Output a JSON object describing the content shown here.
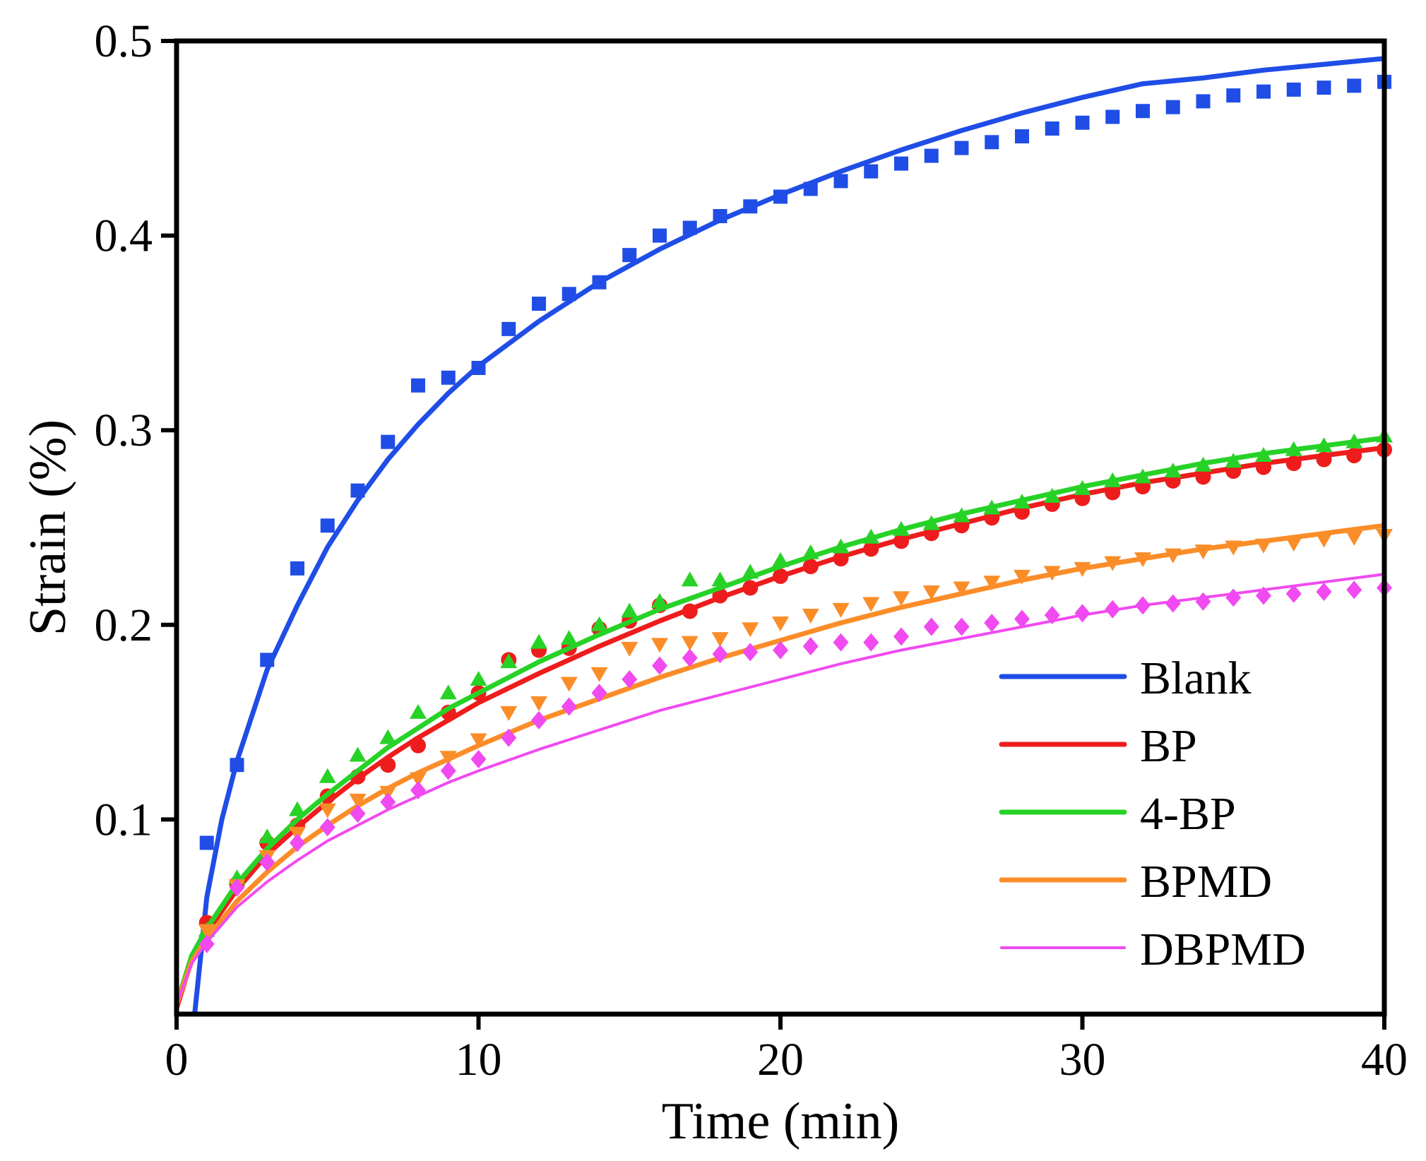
{
  "chart_data": {
    "type": "scatter",
    "title": "",
    "xlabel": "Time (min)",
    "ylabel": "Strain (%)",
    "xlim": [
      0,
      40
    ],
    "ylim": [
      0,
      0.5
    ],
    "xticks": [
      0,
      10,
      20,
      30,
      40
    ],
    "xtick_labels": [
      "0",
      "10",
      "20",
      "30",
      "40"
    ],
    "yticks": [
      0.1,
      0.2,
      0.3,
      0.4,
      0.5
    ],
    "ytick_labels": [
      "0.1",
      "0.2",
      "0.3",
      "0.4",
      "0.5"
    ],
    "legend_position": "bottom-right",
    "grid": false,
    "series": [
      {
        "name": "Blank",
        "color": "#1f4de6",
        "marker": "square",
        "x": [
          1,
          2,
          3,
          4,
          5,
          6,
          7,
          8,
          9,
          10,
          11,
          12,
          13,
          14,
          15,
          16,
          17,
          18,
          19,
          20,
          21,
          22,
          23,
          24,
          25,
          26,
          27,
          28,
          29,
          30,
          31,
          32,
          33,
          34,
          35,
          36,
          37,
          38,
          39,
          40
        ],
        "values": [
          0.088,
          0.128,
          0.182,
          0.229,
          0.251,
          0.269,
          0.294,
          0.323,
          0.327,
          0.332,
          0.352,
          0.365,
          0.37,
          0.376,
          0.39,
          0.4,
          0.404,
          0.41,
          0.415,
          0.42,
          0.424,
          0.428,
          0.433,
          0.437,
          0.441,
          0.445,
          0.448,
          0.451,
          0.455,
          0.458,
          0.461,
          0.464,
          0.466,
          0.469,
          0.472,
          0.474,
          0.475,
          0.476,
          0.477,
          0.479
        ],
        "fit_x": [
          0.6,
          1,
          1.5,
          2,
          3,
          4,
          5,
          6,
          7,
          8,
          9,
          10,
          12,
          14,
          16,
          18,
          20,
          22,
          24,
          26,
          28,
          30,
          32,
          34,
          36,
          38,
          40
        ],
        "fit_values": [
          0.0,
          0.06,
          0.1,
          0.13,
          0.177,
          0.21,
          0.24,
          0.264,
          0.285,
          0.303,
          0.319,
          0.333,
          0.356,
          0.376,
          0.393,
          0.408,
          0.421,
          0.433,
          0.444,
          0.454,
          0.463,
          0.471,
          0.478,
          0.481,
          0.485,
          0.488,
          0.491
        ],
        "line_width": 7
      },
      {
        "name": "BP",
        "color": "#ee1c1c",
        "marker": "circle",
        "x": [
          1,
          2,
          3,
          4,
          5,
          6,
          7,
          8,
          9,
          10,
          11,
          12,
          13,
          14,
          15,
          16,
          17,
          18,
          19,
          20,
          21,
          22,
          23,
          24,
          25,
          26,
          27,
          28,
          29,
          30,
          31,
          32,
          33,
          34,
          35,
          36,
          37,
          38,
          39,
          40
        ],
        "values": [
          0.047,
          0.067,
          0.088,
          0.097,
          0.112,
          0.122,
          0.128,
          0.138,
          0.155,
          0.165,
          0.182,
          0.187,
          0.188,
          0.198,
          0.202,
          0.21,
          0.207,
          0.215,
          0.219,
          0.225,
          0.23,
          0.234,
          0.239,
          0.243,
          0.247,
          0.251,
          0.255,
          0.258,
          0.262,
          0.265,
          0.268,
          0.271,
          0.274,
          0.276,
          0.279,
          0.281,
          0.283,
          0.285,
          0.287,
          0.29
        ],
        "fit_x": [
          0,
          0.5,
          1,
          2,
          3,
          4,
          5,
          6,
          7,
          8,
          9,
          10,
          12,
          14,
          16,
          18,
          20,
          22,
          24,
          26,
          28,
          30,
          32,
          34,
          36,
          38,
          40
        ],
        "fit_values": [
          0.003,
          0.028,
          0.042,
          0.064,
          0.082,
          0.096,
          0.109,
          0.121,
          0.132,
          0.142,
          0.151,
          0.16,
          0.175,
          0.189,
          0.202,
          0.214,
          0.225,
          0.235,
          0.244,
          0.252,
          0.26,
          0.267,
          0.273,
          0.278,
          0.283,
          0.287,
          0.291
        ],
        "line_width": 7
      },
      {
        "name": "4-BP",
        "color": "#27d227",
        "marker": "triangle-up",
        "x": [
          1,
          2,
          3,
          4,
          5,
          6,
          7,
          8,
          9,
          10,
          11,
          12,
          13,
          14,
          15,
          16,
          17,
          18,
          19,
          20,
          21,
          22,
          23,
          24,
          25,
          26,
          27,
          28,
          29,
          30,
          31,
          32,
          33,
          34,
          35,
          36,
          37,
          38,
          39,
          40
        ],
        "values": [
          0.043,
          0.07,
          0.091,
          0.105,
          0.122,
          0.133,
          0.142,
          0.155,
          0.165,
          0.172,
          0.181,
          0.191,
          0.193,
          0.2,
          0.207,
          0.212,
          0.223,
          0.223,
          0.227,
          0.233,
          0.237,
          0.24,
          0.245,
          0.249,
          0.252,
          0.256,
          0.26,
          0.263,
          0.266,
          0.27,
          0.274,
          0.276,
          0.279,
          0.282,
          0.284,
          0.287,
          0.29,
          0.292,
          0.294,
          0.297
        ],
        "fit_x": [
          0,
          0.5,
          1,
          2,
          3,
          4,
          5,
          6,
          7,
          8,
          9,
          10,
          12,
          14,
          16,
          18,
          20,
          22,
          24,
          26,
          28,
          30,
          32,
          34,
          36,
          38,
          40
        ],
        "fit_values": [
          0.005,
          0.03,
          0.044,
          0.067,
          0.085,
          0.1,
          0.113,
          0.125,
          0.137,
          0.147,
          0.157,
          0.165,
          0.181,
          0.195,
          0.208,
          0.219,
          0.23,
          0.24,
          0.249,
          0.257,
          0.264,
          0.271,
          0.277,
          0.283,
          0.288,
          0.292,
          0.296
        ],
        "line_width": 7
      },
      {
        "name": "BPMD",
        "color": "#fb8d29",
        "marker": "triangle-down",
        "x": [
          1,
          2,
          3,
          4,
          5,
          6,
          7,
          8,
          9,
          10,
          11,
          12,
          13,
          14,
          15,
          16,
          17,
          18,
          19,
          20,
          21,
          22,
          23,
          24,
          25,
          26,
          27,
          28,
          29,
          30,
          31,
          32,
          33,
          34,
          35,
          36,
          37,
          38,
          39,
          40
        ],
        "values": [
          0.043,
          0.066,
          0.081,
          0.093,
          0.105,
          0.11,
          0.114,
          0.121,
          0.132,
          0.141,
          0.155,
          0.16,
          0.17,
          0.175,
          0.188,
          0.19,
          0.191,
          0.193,
          0.198,
          0.201,
          0.205,
          0.208,
          0.211,
          0.214,
          0.217,
          0.219,
          0.222,
          0.225,
          0.227,
          0.229,
          0.232,
          0.234,
          0.236,
          0.238,
          0.24,
          0.241,
          0.242,
          0.244,
          0.245,
          0.246
        ],
        "fit_x": [
          0,
          0.5,
          1,
          2,
          3,
          4,
          5,
          6,
          7,
          8,
          9,
          10,
          12,
          14,
          16,
          18,
          20,
          22,
          24,
          26,
          28,
          30,
          32,
          34,
          36,
          38,
          40
        ],
        "fit_values": [
          0.005,
          0.027,
          0.039,
          0.058,
          0.073,
          0.086,
          0.097,
          0.107,
          0.116,
          0.124,
          0.131,
          0.138,
          0.151,
          0.162,
          0.173,
          0.183,
          0.192,
          0.201,
          0.209,
          0.216,
          0.223,
          0.229,
          0.234,
          0.239,
          0.243,
          0.247,
          0.251
        ],
        "line_width": 7
      },
      {
        "name": "DBPMD",
        "color": "#f04af0",
        "marker": "diamond",
        "x": [
          1,
          2,
          3,
          4,
          5,
          6,
          7,
          8,
          9,
          10,
          11,
          12,
          13,
          14,
          15,
          16,
          17,
          18,
          19,
          20,
          21,
          22,
          23,
          24,
          25,
          26,
          27,
          28,
          29,
          30,
          31,
          32,
          33,
          34,
          35,
          36,
          37,
          38,
          39,
          40
        ],
        "values": [
          0.036,
          0.065,
          0.078,
          0.088,
          0.096,
          0.103,
          0.109,
          0.115,
          0.125,
          0.131,
          0.142,
          0.151,
          0.158,
          0.165,
          0.172,
          0.179,
          0.183,
          0.185,
          0.186,
          0.187,
          0.189,
          0.191,
          0.191,
          0.194,
          0.199,
          0.199,
          0.201,
          0.203,
          0.205,
          0.206,
          0.208,
          0.21,
          0.211,
          0.212,
          0.214,
          0.215,
          0.216,
          0.217,
          0.218,
          0.219
        ],
        "fit_x": [
          0,
          0.5,
          1,
          2,
          3,
          4,
          5,
          6,
          7,
          8,
          9,
          10,
          12,
          14,
          16,
          18,
          20,
          22,
          24,
          26,
          28,
          30,
          32,
          34,
          36,
          38,
          40
        ],
        "fit_values": [
          0.005,
          0.026,
          0.037,
          0.055,
          0.068,
          0.079,
          0.089,
          0.097,
          0.105,
          0.112,
          0.119,
          0.125,
          0.136,
          0.146,
          0.156,
          0.164,
          0.172,
          0.18,
          0.187,
          0.193,
          0.199,
          0.205,
          0.21,
          0.214,
          0.218,
          0.222,
          0.226
        ],
        "line_width": 4
      }
    ]
  }
}
